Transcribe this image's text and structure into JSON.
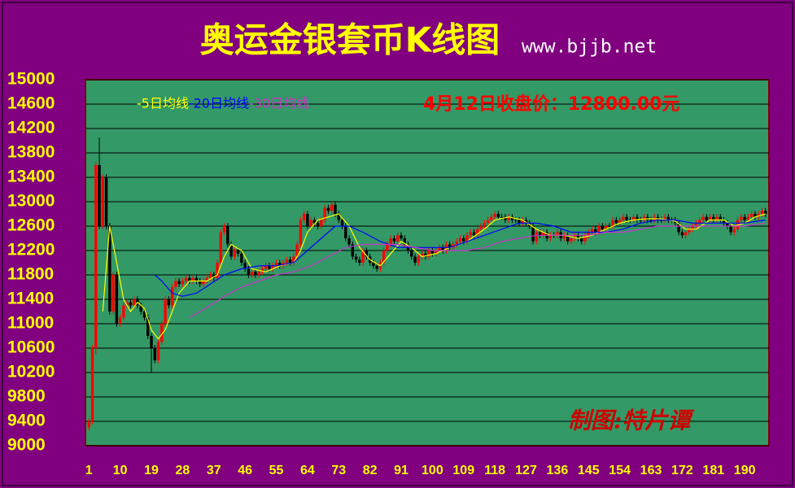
{
  "chart_data": {
    "type": "candlestick",
    "title": "奥运金银套币K线图",
    "subtitle": "www.bjjb.net",
    "annotation": "4月12日收盘价：12800.00元",
    "watermark": "制图:特片谭",
    "up_color": "#ff0000",
    "down_color": "#000000",
    "grid": true,
    "xlim": [
      0,
      197
    ],
    "xticks": [
      1,
      10,
      19,
      28,
      37,
      46,
      55,
      64,
      73,
      82,
      91,
      100,
      109,
      118,
      127,
      136,
      145,
      154,
      163,
      172,
      181,
      190
    ],
    "ylim": [
      9000,
      15000
    ],
    "yticks": [
      9000,
      9400,
      9800,
      10200,
      10600,
      11000,
      11400,
      11800,
      12200,
      12600,
      13000,
      13400,
      13800,
      14200,
      14600,
      15000
    ],
    "x": [
      1,
      2,
      3,
      4,
      5,
      6,
      7,
      8,
      9,
      10,
      11,
      12,
      13,
      14,
      15,
      16,
      17,
      18,
      19,
      20,
      21,
      22,
      23,
      24,
      25,
      26,
      27,
      28,
      29,
      30,
      31,
      32,
      33,
      34,
      35,
      36,
      37,
      38,
      39,
      40,
      41,
      42,
      43,
      44,
      45,
      46,
      47,
      48,
      49,
      50,
      51,
      52,
      53,
      54,
      55,
      56,
      57,
      58,
      59,
      60,
      61,
      62,
      63,
      64,
      65,
      66,
      67,
      68,
      69,
      70,
      71,
      72,
      73,
      74,
      75,
      76,
      77,
      78,
      79,
      80,
      81,
      82,
      83,
      84,
      85,
      86,
      87,
      88,
      89,
      90,
      91,
      92,
      93,
      94,
      95,
      96,
      97,
      98,
      99,
      100,
      101,
      102,
      103,
      104,
      105,
      106,
      107,
      108,
      109,
      110,
      111,
      112,
      113,
      114,
      115,
      116,
      117,
      118,
      119,
      120,
      121,
      122,
      123,
      124,
      125,
      126,
      127,
      128,
      129,
      130,
      131,
      132,
      133,
      134,
      135,
      136,
      137,
      138,
      139,
      140,
      141,
      142,
      143,
      144,
      145,
      146,
      147,
      148,
      149,
      150,
      151,
      152,
      153,
      154,
      155,
      156,
      157,
      158,
      159,
      160,
      161,
      162,
      163,
      164,
      165,
      166,
      167,
      168,
      169,
      170,
      171,
      172,
      173,
      174,
      175,
      176,
      177,
      178,
      179,
      180,
      181,
      182,
      183,
      184,
      185,
      186,
      187,
      188,
      189,
      190,
      191,
      192,
      193,
      194,
      195,
      196
    ],
    "open": [
      9300,
      9400,
      10600,
      13600,
      12600,
      13400,
      12600,
      11200,
      11800,
      11000,
      11100,
      11300,
      11350,
      11300,
      11400,
      11300,
      11200,
      11100,
      10800,
      10600,
      10400,
      10700,
      11000,
      11400,
      11300,
      11600,
      11700,
      11650,
      11700,
      11750,
      11700,
      11750,
      11700,
      11650,
      11700,
      11750,
      11800,
      11750,
      12000,
      12500,
      12600,
      12300,
      12100,
      12200,
      12150,
      12000,
      11900,
      11800,
      11850,
      11800,
      11850,
      11900,
      11950,
      11900,
      11950,
      12000,
      11950,
      12000,
      12050,
      12000,
      12100,
      12300,
      12700,
      12800,
      12600,
      12700,
      12650,
      12600,
      12700,
      12900,
      12850,
      12950,
      12800,
      12700,
      12600,
      12400,
      12300,
      12100,
      12050,
      12000,
      12200,
      12100,
      12000,
      11950,
      11900,
      12000,
      12200,
      12300,
      12400,
      12350,
      12450,
      12400,
      12300,
      12200,
      12100,
      12000,
      12100,
      12150,
      12100,
      12200,
      12150,
      12200,
      12250,
      12200,
      12300,
      12250,
      12300,
      12350,
      12400,
      12350,
      12450,
      12500,
      12450,
      12550,
      12600,
      12650,
      12700,
      12750,
      12800,
      12750,
      12750,
      12700,
      12750,
      12700,
      12700,
      12650,
      12700,
      12650,
      12600,
      12350,
      12500,
      12450,
      12500,
      12400,
      12450,
      12450,
      12500,
      12400,
      12450,
      12350,
      12400,
      12450,
      12400,
      12350,
      12450,
      12500,
      12550,
      12500,
      12600,
      12550,
      12600,
      12600,
      12700,
      12650,
      12700,
      12750,
      12700,
      12700,
      12750,
      12700,
      12700,
      12750,
      12700,
      12700,
      12750,
      12700,
      12700,
      12750,
      12700,
      12700,
      12650,
      12500,
      12450,
      12500,
      12550,
      12600,
      12650,
      12700,
      12750,
      12700,
      12750,
      12700,
      12750,
      12700,
      12650,
      12600,
      12500,
      12550,
      12700,
      12750,
      12700,
      12750,
      12800,
      12750,
      12800,
      12850
    ],
    "high": [
      9450,
      10650,
      13650,
      14050,
      13450,
      13450,
      12650,
      11850,
      11850,
      11150,
      11350,
      11400,
      11400,
      11450,
      11450,
      11350,
      11250,
      11150,
      10850,
      10650,
      10750,
      11050,
      11450,
      11450,
      11650,
      11750,
      11750,
      11750,
      11800,
      11800,
      11800,
      11800,
      11750,
      11750,
      11800,
      11850,
      11850,
      12050,
      12550,
      12650,
      12650,
      12350,
      12250,
      12250,
      12200,
      12050,
      11950,
      11900,
      11900,
      11900,
      11950,
      12000,
      12000,
      12000,
      12050,
      12050,
      12050,
      12100,
      12100,
      12150,
      12350,
      12750,
      12850,
      12850,
      12750,
      12750,
      12700,
      12750,
      12950,
      12950,
      13000,
      13000,
      12850,
      12750,
      12650,
      12450,
      12350,
      12150,
      12100,
      12250,
      12250,
      12150,
      12050,
      12000,
      12050,
      12250,
      12350,
      12450,
      12450,
      12500,
      12500,
      12450,
      12350,
      12250,
      12150,
      12150,
      12200,
      12200,
      12250,
      12250,
      12250,
      12300,
      12300,
      12350,
      12350,
      12350,
      12400,
      12450,
      12450,
      12500,
      12550,
      12550,
      12600,
      12650,
      12700,
      12750,
      12800,
      12850,
      12850,
      12800,
      12800,
      12800,
      12800,
      12750,
      12750,
      12750,
      12750,
      12700,
      12650,
      12550,
      12550,
      12550,
      12550,
      12500,
      12500,
      12550,
      12550,
      12500,
      12500,
      12450,
      12500,
      12500,
      12450,
      12500,
      12550,
      12600,
      12600,
      12650,
      12650,
      12650,
      12650,
      12750,
      12750,
      12750,
      12800,
      12800,
      12750,
      12800,
      12800,
      12750,
      12800,
      12800,
      12750,
      12800,
      12800,
      12750,
      12800,
      12800,
      12750,
      12750,
      12700,
      12550,
      12550,
      12600,
      12650,
      12700,
      12750,
      12800,
      12800,
      12800,
      12800,
      12800,
      12800,
      12750,
      12700,
      12650,
      12600,
      12750,
      12800,
      12800,
      12800,
      12850,
      12850,
      12850,
      12900,
      12900
    ],
    "low": [
      9250,
      9350,
      10500,
      12550,
      12550,
      12550,
      11150,
      11150,
      10950,
      10950,
      11050,
      11250,
      11250,
      11250,
      11250,
      11150,
      11050,
      10750,
      10200,
      10350,
      10350,
      10650,
      10950,
      11250,
      11250,
      11550,
      11600,
      11600,
      11650,
      11650,
      11650,
      11650,
      11600,
      11600,
      11650,
      11700,
      11700,
      11700,
      11950,
      12450,
      12250,
      12050,
      12050,
      12100,
      11950,
      11850,
      11750,
      11750,
      11750,
      11750,
      11800,
      11850,
      11850,
      11850,
      11900,
      11900,
      11900,
      11950,
      11950,
      11950,
      12050,
      12250,
      12650,
      12550,
      12550,
      12600,
      12550,
      12550,
      12650,
      12800,
      12800,
      12750,
      12650,
      12550,
      12350,
      12250,
      12050,
      12000,
      11950,
      11950,
      12050,
      11950,
      11900,
      11850,
      11850,
      11950,
      12150,
      12250,
      12300,
      12300,
      12350,
      12250,
      12150,
      12050,
      11950,
      11950,
      12050,
      12050,
      12050,
      12100,
      12100,
      12150,
      12150,
      12150,
      12200,
      12200,
      12250,
      12300,
      12300,
      12300,
      12400,
      12400,
      12400,
      12500,
      12550,
      12600,
      12650,
      12700,
      12700,
      12700,
      12650,
      12650,
      12650,
      12650,
      12600,
      12600,
      12600,
      12550,
      12300,
      12300,
      12400,
      12400,
      12350,
      12350,
      12400,
      12400,
      12350,
      12350,
      12300,
      12300,
      12350,
      12350,
      12300,
      12300,
      12400,
      12450,
      12450,
      12450,
      12500,
      12500,
      12550,
      12550,
      12600,
      12600,
      12650,
      12650,
      12650,
      12650,
      12650,
      12650,
      12650,
      12650,
      12650,
      12650,
      12650,
      12650,
      12650,
      12650,
      12650,
      12600,
      12450,
      12400,
      12400,
      12450,
      12500,
      12550,
      12600,
      12650,
      12650,
      12650,
      12650,
      12650,
      12650,
      12600,
      12550,
      12450,
      12450,
      12500,
      12650,
      12650,
      12650,
      12700,
      12700,
      12700,
      12750,
      12750
    ],
    "close": [
      9400,
      10600,
      13600,
      12600,
      13400,
      12600,
      11200,
      11800,
      11000,
      11100,
      11300,
      11350,
      11300,
      11400,
      11300,
      11200,
      11100,
      10800,
      10600,
      10400,
      10700,
      11000,
      11400,
      11300,
      11600,
      11700,
      11650,
      11700,
      11750,
      11700,
      11750,
      11700,
      11650,
      11700,
      11750,
      11800,
      11750,
      12000,
      12500,
      12600,
      12300,
      12100,
      12200,
      12150,
      12000,
      11900,
      11800,
      11850,
      11800,
      11850,
      11900,
      11950,
      11900,
      11950,
      12000,
      11950,
      12000,
      12050,
      12000,
      12100,
      12300,
      12700,
      12800,
      12600,
      12700,
      12650,
      12600,
      12700,
      12900,
      12850,
      12950,
      12800,
      12700,
      12600,
      12400,
      12300,
      12100,
      12050,
      12000,
      12200,
      12100,
      12000,
      11950,
      11900,
      12000,
      12200,
      12300,
      12400,
      12350,
      12450,
      12400,
      12300,
      12200,
      12100,
      12000,
      12100,
      12150,
      12100,
      12200,
      12150,
      12200,
      12250,
      12200,
      12300,
      12250,
      12300,
      12350,
      12400,
      12350,
      12450,
      12500,
      12450,
      12550,
      12600,
      12650,
      12700,
      12750,
      12800,
      12750,
      12750,
      12700,
      12750,
      12700,
      12700,
      12650,
      12700,
      12650,
      12600,
      12350,
      12500,
      12450,
      12500,
      12400,
      12450,
      12450,
      12500,
      12400,
      12450,
      12350,
      12400,
      12450,
      12400,
      12350,
      12450,
      12500,
      12550,
      12500,
      12600,
      12550,
      12600,
      12600,
      12700,
      12650,
      12700,
      12750,
      12700,
      12700,
      12750,
      12700,
      12700,
      12750,
      12700,
      12700,
      12750,
      12700,
      12700,
      12750,
      12700,
      12700,
      12650,
      12500,
      12450,
      12500,
      12550,
      12600,
      12650,
      12700,
      12750,
      12700,
      12750,
      12700,
      12750,
      12700,
      12650,
      12600,
      12500,
      12550,
      12700,
      12750,
      12700,
      12750,
      12800,
      12750,
      12800,
      12850,
      12800
    ],
    "series": [
      {
        "name": "-5日均线",
        "color": "#ffff00",
        "x": [
          5,
          7,
          9,
          11,
          13,
          15,
          17,
          19,
          21,
          23,
          25,
          27,
          30,
          35,
          38,
          40,
          42,
          45,
          48,
          52,
          56,
          60,
          62,
          64,
          67,
          70,
          73,
          76,
          79,
          82,
          85,
          88,
          91,
          94,
          97,
          101,
          105,
          110,
          115,
          118,
          122,
          126,
          130,
          134,
          138,
          142,
          146,
          150,
          154,
          158,
          162,
          166,
          170,
          173,
          176,
          180,
          184,
          187,
          190,
          193,
          196
        ],
        "values": [
          11200,
          12600,
          12000,
          11400,
          11200,
          11350,
          11250,
          10900,
          10750,
          10900,
          11200,
          11500,
          11700,
          11700,
          11800,
          12100,
          12300,
          12200,
          11900,
          11850,
          11950,
          12000,
          12200,
          12500,
          12700,
          12750,
          12800,
          12600,
          12250,
          12050,
          11950,
          12150,
          12350,
          12250,
          12100,
          12150,
          12250,
          12350,
          12550,
          12700,
          12750,
          12700,
          12550,
          12450,
          12450,
          12400,
          12450,
          12550,
          12650,
          12700,
          12720,
          12720,
          12680,
          12550,
          12550,
          12700,
          12700,
          12600,
          12650,
          12750,
          12800
        ]
      },
      {
        "name": "-20日均线",
        "color": "#0000ff",
        "x": [
          20,
          22,
          25,
          28,
          32,
          36,
          40,
          45,
          50,
          55,
          60,
          64,
          68,
          72,
          76,
          80,
          85,
          90,
          95,
          100,
          105,
          110,
          115,
          120,
          125,
          130,
          135,
          140,
          145,
          150,
          155,
          160,
          165,
          170,
          175,
          180,
          185,
          190,
          196
        ],
        "values": [
          11800,
          11700,
          11500,
          11450,
          11500,
          11650,
          11800,
          11900,
          11950,
          11950,
          12000,
          12200,
          12400,
          12600,
          12600,
          12500,
          12350,
          12250,
          12250,
          12250,
          12250,
          12350,
          12450,
          12550,
          12650,
          12650,
          12600,
          12500,
          12500,
          12500,
          12550,
          12650,
          12700,
          12700,
          12650,
          12650,
          12650,
          12650,
          12700
        ]
      },
      {
        "name": "-30日均线",
        "color": "#cc33cc",
        "x": [
          30,
          33,
          36,
          40,
          45,
          50,
          55,
          60,
          65,
          70,
          75,
          80,
          85,
          90,
          95,
          100,
          105,
          110,
          115,
          120,
          125,
          130,
          135,
          140,
          145,
          150,
          155,
          160,
          165,
          170,
          175,
          180,
          185,
          190,
          196
        ],
        "values": [
          11100,
          11200,
          11300,
          11450,
          11600,
          11700,
          11800,
          11850,
          11950,
          12100,
          12250,
          12300,
          12300,
          12300,
          12250,
          12200,
          12200,
          12200,
          12250,
          12350,
          12400,
          12450,
          12450,
          12450,
          12450,
          12500,
          12500,
          12550,
          12600,
          12600,
          12600,
          12600,
          12600,
          12600,
          12650
        ]
      }
    ]
  }
}
